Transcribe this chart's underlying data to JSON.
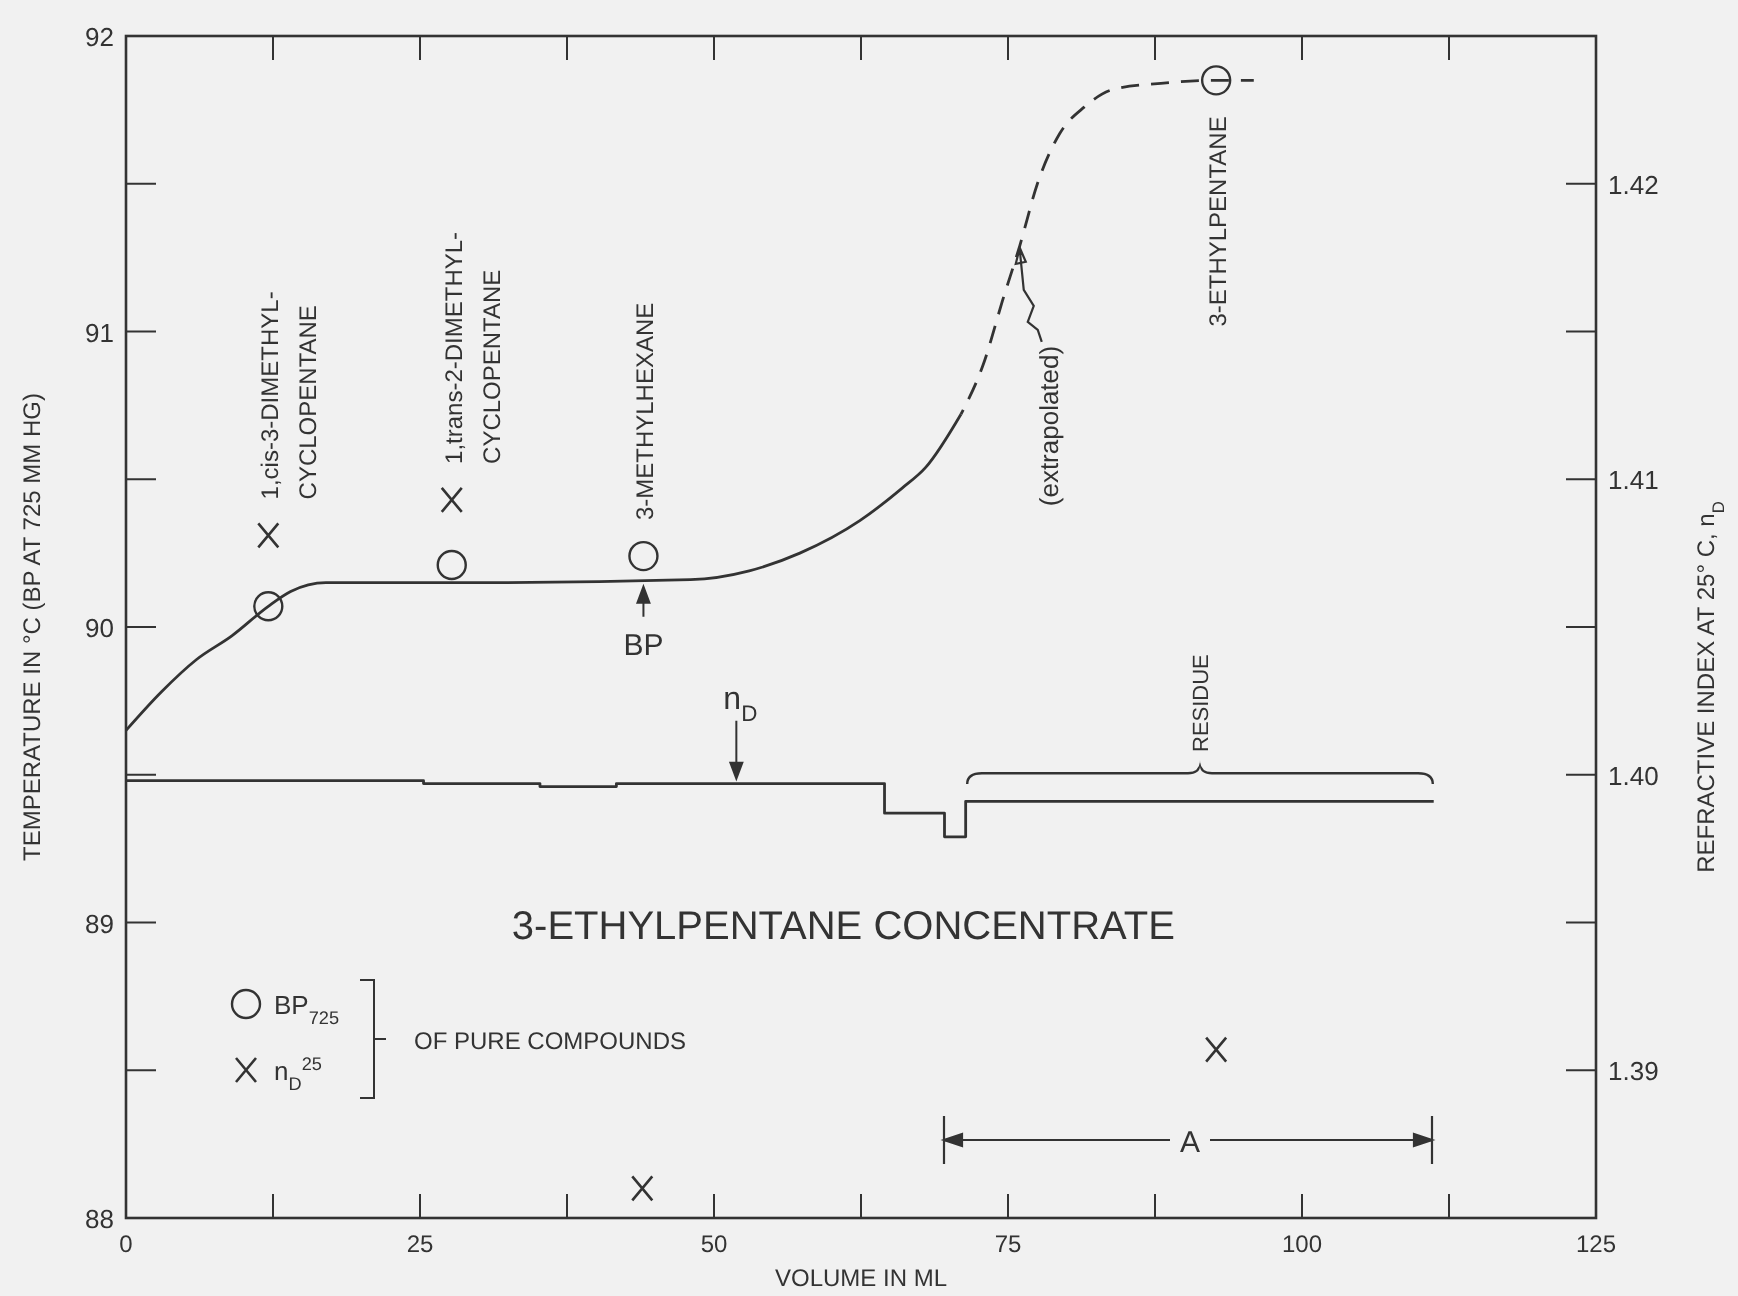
{
  "chart_data": {
    "type": "line",
    "xlabel": "VOLUME IN ML",
    "ylabel": "TEMPERATURE IN °C (BP AT 725 MM HG)",
    "y2label": "REFRACTIVE INDEX AT 25° C, n$_{D}$",
    "xlim": [
      0,
      125
    ],
    "xticks": [
      0,
      {
        "value": 12.5,
        "label": null
      },
      25,
      {
        "value": 37.5,
        "label": null
      },
      50,
      {
        "value": 62.5,
        "label": null
      },
      75,
      {
        "value": 87.5,
        "label": null
      },
      100,
      {
        "value": 112.5,
        "label": null
      },
      125
    ],
    "ylim": [
      88,
      92
    ],
    "yticks": [
      88,
      {
        "value": 88.5,
        "label": null
      },
      89,
      {
        "value": 89.5,
        "label": null
      },
      90,
      {
        "value": 90.5,
        "label": null
      },
      91,
      {
        "value": 91.5,
        "label": null
      },
      92
    ],
    "y2lim": [
      1.385,
      1.425
    ],
    "y2ticks": [
      {
        "value": 1.39,
        "label": "1.39"
      },
      {
        "value": 1.395,
        "label": null
      },
      {
        "value": 1.4,
        "label": "1.40"
      },
      {
        "value": 1.405,
        "label": null
      },
      {
        "value": 1.41,
        "label": "1.41"
      },
      {
        "value": 1.415,
        "label": null
      },
      {
        "value": 1.42,
        "label": "1.42"
      }
    ],
    "legend": "bottom left",
    "legend_title": "OF PURE COMPOUNDS",
    "series": [
      {
        "color": "#333333",
        "line_style": "solid",
        "marker": "none",
        "x": [
          0,
          3,
          6,
          9,
          12.1,
          14,
          17,
          30,
          48,
          53,
          57.3,
          62.4,
          66,
          68,
          71
        ],
        "values": [
          89.65,
          89.78,
          89.89,
          89.97,
          90.07,
          90.12,
          90.15,
          90.15,
          90.16,
          90.19,
          90.25,
          90.36,
          90.47,
          90.54,
          90.72
        ]
      },
      {
        "color": "#333333",
        "line_style": "dashed",
        "marker": "none",
        "x": [
          71,
          73,
          74.5,
          76,
          77.5,
          79.4,
          81.5,
          84,
          88,
          92.7,
          95.9
        ],
        "values": [
          90.72,
          90.9,
          91.1,
          91.29,
          91.5,
          91.67,
          91.76,
          91.82,
          91.84,
          91.85,
          91.85
        ]
      },
      {
        "type": "step",
        "axis": "y2",
        "color": "#333333",
        "line_style": "solid",
        "marker": "none",
        "x": [
          0,
          25.3,
          35.2,
          41.7,
          64.5,
          69.6,
          71.4,
          111.2
        ],
        "values": [
          1.3998,
          1.3997,
          1.3996,
          1.3997,
          1.3987,
          1.3979,
          1.3991,
          1.3991
        ]
      },
      {
        "type": "scatter",
        "name": "BP$_{725}$",
        "color": "#333333",
        "marker": "circle",
        "x": [
          12.1,
          27.7,
          44,
          92.7
        ],
        "values": [
          90.07,
          90.21,
          90.24,
          91.85
        ]
      },
      {
        "type": "scatter",
        "name": "n$_{D}$$^{25}$",
        "axis": "y2",
        "color": "#333333",
        "marker": "cross",
        "x": [
          12.1,
          27.7,
          43.9,
          92.7
        ],
        "values": [
          1.4081,
          1.4093,
          1.386,
          1.3907
        ]
      }
    ],
    "annotations": [
      {
        "text": "1,cis-3-DIMETHYL-\nCYCLOPENTANE",
        "x": 12.1,
        "y": 90.31
      },
      {
        "text": "1,trans-2-DIMETHYL-\nCYCLOPENTANE",
        "x": 27.7,
        "y": 90.43
      },
      {
        "text": "3-METHYLHEXANE",
        "x": 44,
        "y": 90.24
      },
      {
        "text": "3-ETHYLPENTANE",
        "x": 92.7,
        "y": 91.85
      },
      {
        "text": "BP",
        "x": 44,
        "y": 90.15
      },
      {
        "text": "n$_{D}$",
        "x": 51.9,
        "y": 89.48
      },
      {
        "text": "(extrapolated)",
        "x": 76,
        "y": 91.29
      },
      "RESIDUE",
      "A",
      "3-ETHYLPENTANE CONCENTRATE"
    ]
  }
}
